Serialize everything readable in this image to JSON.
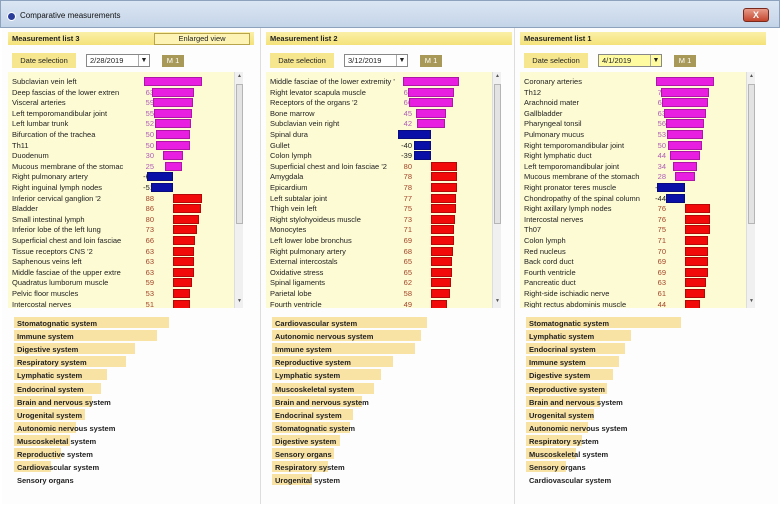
{
  "window": {
    "title": "Comparative measurements",
    "close_label": "X"
  },
  "common": {
    "date_label": "Date selection",
    "m1_label": "M 1",
    "enlarged_view": "Enlarged view"
  },
  "panels": [
    {
      "title": "Measurement list 3",
      "date": "2/28/2019",
      "rows": [
        {
          "name": "Subclavian vein left",
          "value": 84,
          "kind": "magenta"
        },
        {
          "name": "Deep fascias of the lower extren",
          "value": 63,
          "kind": "magenta"
        },
        {
          "name": "Visceral arteries",
          "value": 59,
          "kind": "magenta"
        },
        {
          "name": "Left temporomandibular joint",
          "value": 55,
          "kind": "magenta"
        },
        {
          "name": "Left lumbar trunk",
          "value": 52,
          "kind": "magenta"
        },
        {
          "name": "Bifurcation of the trachea",
          "value": 50,
          "kind": "magenta"
        },
        {
          "name": "Th11",
          "value": 50,
          "kind": "magenta"
        },
        {
          "name": "Duodenum",
          "value": 30,
          "kind": "magenta"
        },
        {
          "name": "Mucous membrane of the stomac",
          "value": 25,
          "kind": "magenta"
        },
        {
          "name": "Right pulmonary artery",
          "value": -60,
          "kind": "blue"
        },
        {
          "name": "Right inguinal lymph nodes",
          "value": -51,
          "kind": "blue"
        },
        {
          "name": "Inferior cervical ganglion '2",
          "value": 88,
          "kind": "red"
        },
        {
          "name": "Bladder",
          "value": 86,
          "kind": "red"
        },
        {
          "name": "Small intestinal lymph",
          "value": 80,
          "kind": "red"
        },
        {
          "name": "Inferior lobe of the left lung",
          "value": 73,
          "kind": "red"
        },
        {
          "name": "Superficial chest and loin fasciae",
          "value": 66,
          "kind": "red"
        },
        {
          "name": "Tissue receptors CNS '2",
          "value": 63,
          "kind": "red"
        },
        {
          "name": "Saphenous veins left",
          "value": 63,
          "kind": "red"
        },
        {
          "name": "Middle fasciae of the upper extre",
          "value": 63,
          "kind": "red"
        },
        {
          "name": "Quadratus lumborum muscle",
          "value": 59,
          "kind": "red"
        },
        {
          "name": "Pelvic floor muscles",
          "value": 53,
          "kind": "red"
        },
        {
          "name": "Intercostal nerves",
          "value": 51,
          "kind": "red"
        }
      ],
      "systems": [
        "Stomatognatic system",
        "Immune system",
        "Digestive system",
        "Respiratory system",
        "Lymphatic system",
        "Endocrinal system",
        "Brain and nervous system",
        "Urogenital system",
        "Autonomic nervous system",
        "Muscoskeletal system",
        "Reproductive system",
        "Cardiovascular system",
        "Sensory organs"
      ],
      "system_levels": [
        100,
        92,
        78,
        72,
        60,
        56,
        50,
        46,
        40,
        36,
        30,
        24,
        0
      ]
    },
    {
      "title": "Measurement list 2",
      "date": "3/12/2019",
      "rows": [
        {
          "name": "Middle fasciae of the lower extremity '2",
          "value": 83,
          "kind": "magenta"
        },
        {
          "name": "Right levator scapula muscle",
          "value": 67,
          "kind": "magenta"
        },
        {
          "name": "Receptors of the organs '2",
          "value": 66,
          "kind": "magenta"
        },
        {
          "name": "Bone marrow",
          "value": 45,
          "kind": "magenta"
        },
        {
          "name": "Subclavian vein right",
          "value": 42,
          "kind": "magenta"
        },
        {
          "name": "Spinal dura",
          "value": -77,
          "kind": "blue"
        },
        {
          "name": "Gullet",
          "value": -40,
          "kind": "blue"
        },
        {
          "name": "Colon lymph",
          "value": -39,
          "kind": "blue"
        },
        {
          "name": "Superficial chest and loin fasciae '2",
          "value": 80,
          "kind": "red"
        },
        {
          "name": "Amygdala",
          "value": 78,
          "kind": "red"
        },
        {
          "name": "Epicardium",
          "value": 78,
          "kind": "red"
        },
        {
          "name": "Left subtalar joint",
          "value": 77,
          "kind": "red"
        },
        {
          "name": "Thigh vein left",
          "value": 75,
          "kind": "red"
        },
        {
          "name": "Right stylohyoideus muscle",
          "value": 73,
          "kind": "red"
        },
        {
          "name": "Monocytes",
          "value": 71,
          "kind": "red"
        },
        {
          "name": "Left lower lobe bronchus",
          "value": 69,
          "kind": "red"
        },
        {
          "name": "Right pulmonary artery",
          "value": 68,
          "kind": "red"
        },
        {
          "name": "External intercostals",
          "value": 65,
          "kind": "red"
        },
        {
          "name": "Oxidative stress",
          "value": 65,
          "kind": "red"
        },
        {
          "name": "Spinal ligaments",
          "value": 62,
          "kind": "red"
        },
        {
          "name": "Parietal lobe",
          "value": 58,
          "kind": "red"
        },
        {
          "name": "Fourth ventricle",
          "value": 49,
          "kind": "red"
        }
      ],
      "systems": [
        "Cardiovascular system",
        "Autonomic nervous system",
        "Immune system",
        "Reproductive system",
        "Lymphatic system",
        "Muscoskeletal system",
        "Brain and nervous system",
        "Endocrinal system",
        "Stomatognatic system",
        "Digestive system",
        "Sensory organs",
        "Respiratory system",
        "Urogenital system"
      ],
      "system_levels": [
        100,
        96,
        92,
        78,
        70,
        66,
        58,
        52,
        50,
        44,
        40,
        36,
        26
      ]
    },
    {
      "title": "Measurement list 1",
      "date": "4/1/2019",
      "rows": [
        {
          "name": "Coronary arteries",
          "value": 85,
          "kind": "magenta"
        },
        {
          "name": "Th12",
          "value": 70,
          "kind": "magenta"
        },
        {
          "name": "Arachnoid mater",
          "value": 68,
          "kind": "magenta"
        },
        {
          "name": "Gallbladder",
          "value": 63,
          "kind": "magenta"
        },
        {
          "name": "Pharyngeal tonsil",
          "value": 56,
          "kind": "magenta"
        },
        {
          "name": "Pulmonary mucus",
          "value": 53,
          "kind": "magenta"
        },
        {
          "name": "Right temporomandibular joint",
          "value": 50,
          "kind": "magenta"
        },
        {
          "name": "Right lymphatic duct",
          "value": 44,
          "kind": "magenta"
        },
        {
          "name": "Left temporomandibular joint",
          "value": 34,
          "kind": "magenta"
        },
        {
          "name": "Mucous membrane of the stomach",
          "value": 28,
          "kind": "magenta"
        },
        {
          "name": "Right pronator teres muscle",
          "value": -66,
          "kind": "blue"
        },
        {
          "name": "Chondropathy of the spinal column",
          "value": -44,
          "kind": "blue"
        },
        {
          "name": "Right axillary lymph nodes",
          "value": 76,
          "kind": "red"
        },
        {
          "name": "Intercostal nerves",
          "value": 76,
          "kind": "red"
        },
        {
          "name": "Th07",
          "value": 75,
          "kind": "red"
        },
        {
          "name": "Colon lymph",
          "value": 71,
          "kind": "red"
        },
        {
          "name": "Red nucleus",
          "value": 70,
          "kind": "red"
        },
        {
          "name": "Back cord duct",
          "value": 69,
          "kind": "red"
        },
        {
          "name": "Fourth ventricle",
          "value": 69,
          "kind": "red"
        },
        {
          "name": "Pancreatic duct",
          "value": 63,
          "kind": "red"
        },
        {
          "name": "Right-side ischiadic nerve",
          "value": 61,
          "kind": "red"
        },
        {
          "name": "Right rectus abdominis muscle",
          "value": 44,
          "kind": "red"
        }
      ],
      "systems": [
        "Stomatognatic system",
        "Lymphatic system",
        "Endocrinal system",
        "Immune system",
        "Digestive system",
        "Reproductive system",
        "Brain and nervous system",
        "Urogenital system",
        "Autonomic nervous system",
        "Respiratory system",
        "Muscoskeletal system",
        "Sensory organs",
        "Cardiovascular system"
      ],
      "system_levels": [
        100,
        68,
        64,
        60,
        56,
        52,
        48,
        44,
        40,
        36,
        32,
        26,
        0
      ]
    }
  ],
  "colors": {
    "magenta": "#e81ee0",
    "blue": "#0a0fa8",
    "red": "#f20a0a",
    "magenta_text": "#b05ab8",
    "blue_text": "#222222",
    "red_text": "#a4442a"
  }
}
